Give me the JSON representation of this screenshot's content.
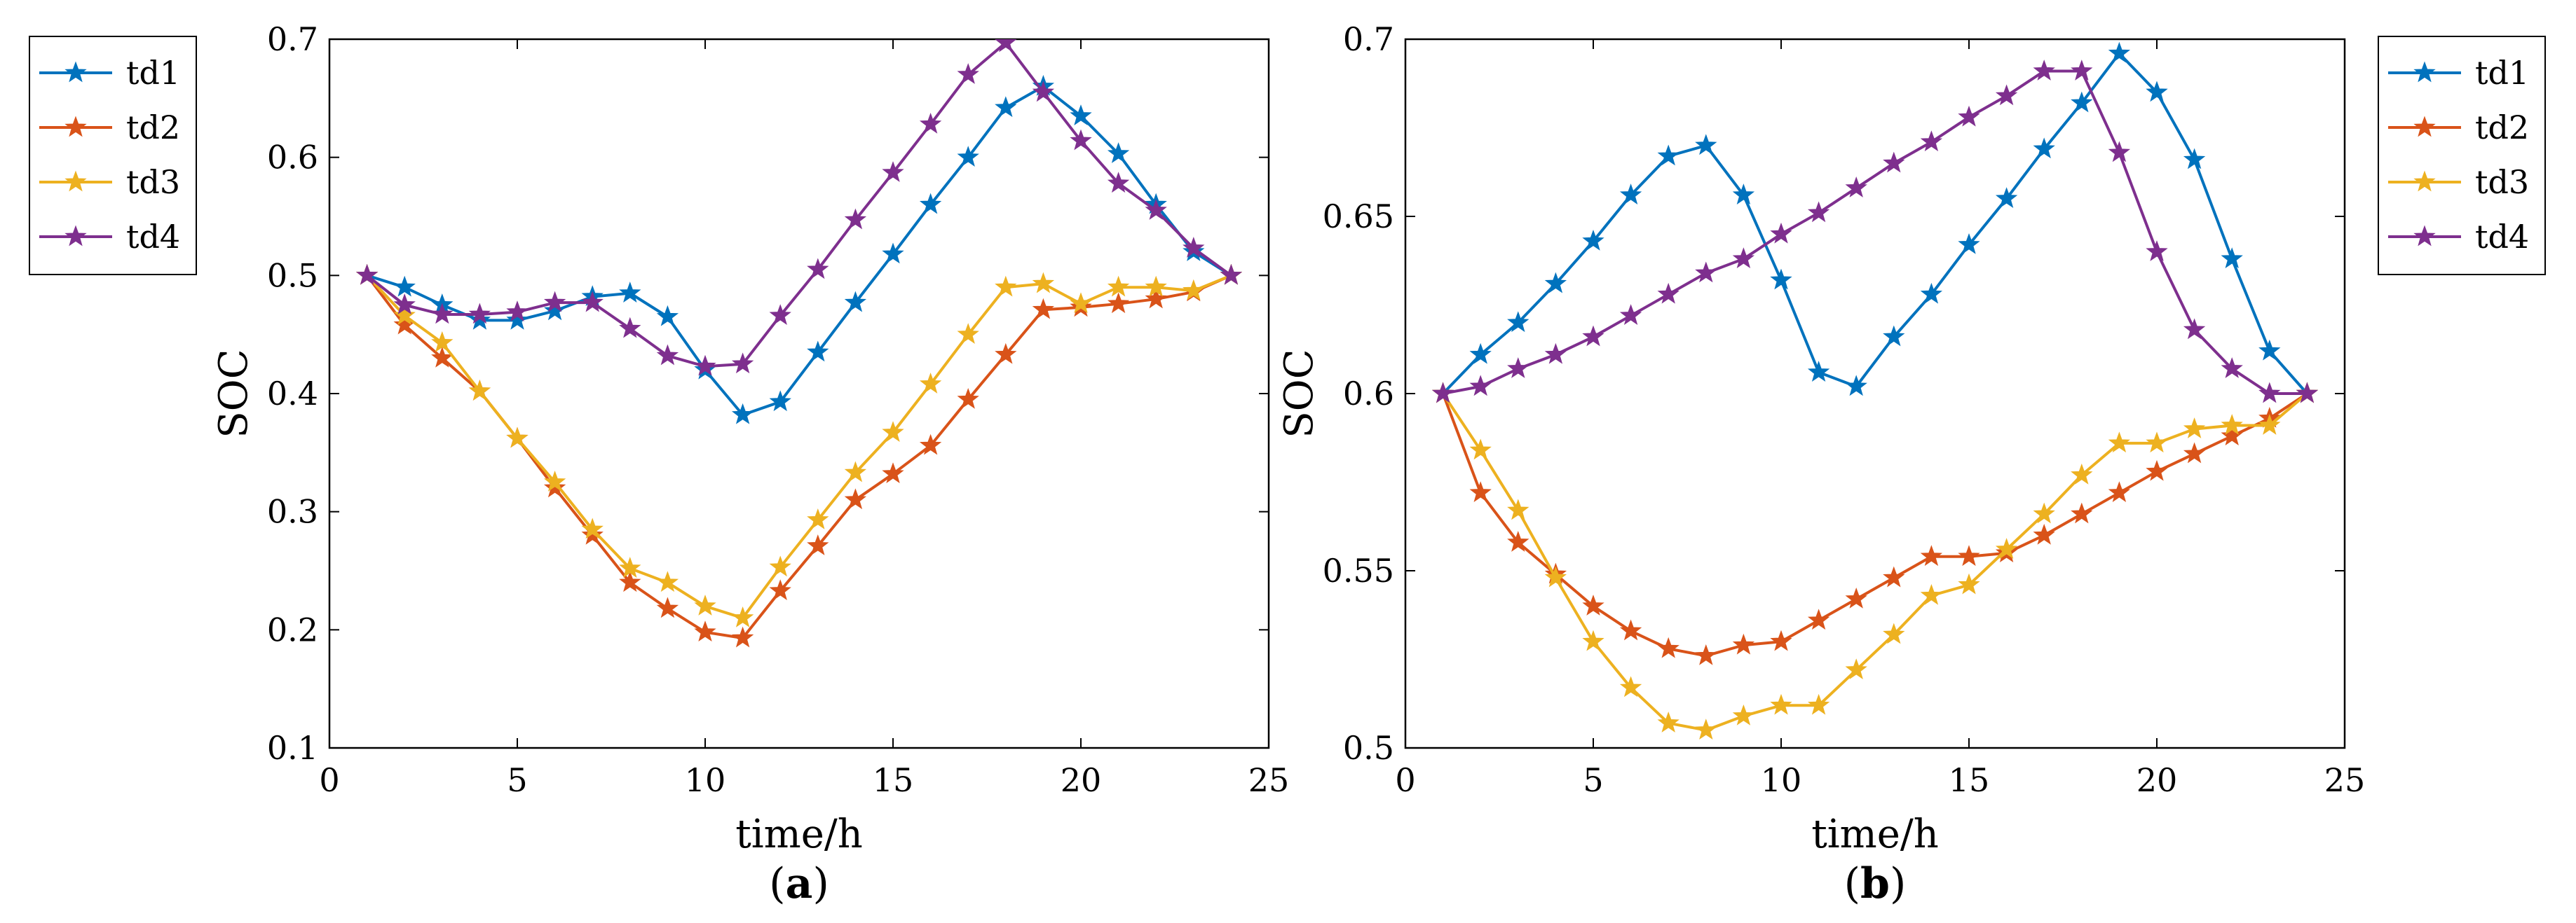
{
  "chart_data": [
    {
      "type": "line",
      "panel_label": "a",
      "xlabel": "time/h",
      "ylabel": "SOC",
      "xlim": [
        0,
        25
      ],
      "ylim": [
        0.1,
        0.7
      ],
      "xticks": [
        0,
        5,
        10,
        15,
        20,
        25
      ],
      "yticks": [
        0.1,
        0.2,
        0.3,
        0.4,
        0.5,
        0.6,
        0.7
      ],
      "xtick_labels": [
        "0",
        "5",
        "10",
        "15",
        "20",
        "25"
      ],
      "ytick_labels": [
        "0.1",
        "0.2",
        "0.3",
        "0.4",
        "0.5",
        "0.6",
        "0.7"
      ],
      "legend_position": "outside-left",
      "x": [
        1,
        2,
        3,
        4,
        5,
        6,
        7,
        8,
        9,
        10,
        11,
        12,
        13,
        14,
        15,
        16,
        17,
        18,
        19,
        20,
        21,
        22,
        23,
        24
      ],
      "series": [
        {
          "name": "td1",
          "color": "#0072BD",
          "values": [
            0.5,
            0.49,
            0.475,
            0.462,
            0.462,
            0.47,
            0.482,
            0.485,
            0.465,
            0.42,
            0.382,
            0.393,
            0.435,
            0.477,
            0.518,
            0.56,
            0.6,
            0.642,
            0.66,
            0.635,
            0.603,
            0.56,
            0.52,
            0.5
          ]
        },
        {
          "name": "td2",
          "color": "#D95319",
          "values": [
            0.5,
            0.458,
            0.43,
            0.402,
            0.362,
            0.32,
            0.28,
            0.24,
            0.218,
            0.198,
            0.193,
            0.233,
            0.271,
            0.31,
            0.332,
            0.356,
            0.395,
            0.433,
            0.471,
            0.473,
            0.476,
            0.48,
            0.486,
            0.5
          ]
        },
        {
          "name": "td3",
          "color": "#EDB120",
          "values": [
            0.5,
            0.466,
            0.443,
            0.402,
            0.362,
            0.325,
            0.285,
            0.252,
            0.24,
            0.22,
            0.21,
            0.253,
            0.293,
            0.333,
            0.367,
            0.408,
            0.45,
            0.49,
            0.493,
            0.476,
            0.49,
            0.49,
            0.487,
            0.5
          ]
        },
        {
          "name": "td4",
          "color": "#7E2F8E",
          "values": [
            0.5,
            0.475,
            0.467,
            0.467,
            0.469,
            0.477,
            0.477,
            0.455,
            0.432,
            0.423,
            0.425,
            0.466,
            0.505,
            0.547,
            0.587,
            0.628,
            0.67,
            0.697,
            0.655,
            0.614,
            0.578,
            0.555,
            0.523,
            0.5
          ]
        }
      ]
    },
    {
      "type": "line",
      "panel_label": "b",
      "xlabel": "time/h",
      "ylabel": "SOC",
      "xlim": [
        0,
        25
      ],
      "ylim": [
        0.5,
        0.7
      ],
      "xticks": [
        0,
        5,
        10,
        15,
        20,
        25
      ],
      "yticks": [
        0.5,
        0.55,
        0.6,
        0.65,
        0.7
      ],
      "xtick_labels": [
        "0",
        "5",
        "10",
        "15",
        "20",
        "25"
      ],
      "ytick_labels": [
        "0.5",
        "0.55",
        "0.6",
        "0.65",
        "0.7"
      ],
      "legend_position": "outside-right",
      "x": [
        1,
        2,
        3,
        4,
        5,
        6,
        7,
        8,
        9,
        10,
        11,
        12,
        13,
        14,
        15,
        16,
        17,
        18,
        19,
        20,
        21,
        22,
        23,
        24
      ],
      "series": [
        {
          "name": "td1",
          "color": "#0072BD",
          "values": [
            0.6,
            0.611,
            0.62,
            0.631,
            0.643,
            0.656,
            0.667,
            0.67,
            0.656,
            0.632,
            0.606,
            0.602,
            0.616,
            0.628,
            0.642,
            0.655,
            0.669,
            0.682,
            0.696,
            0.685,
            0.666,
            0.638,
            0.612,
            0.6
          ]
        },
        {
          "name": "td2",
          "color": "#D95319",
          "values": [
            0.6,
            0.572,
            0.558,
            0.549,
            0.54,
            0.533,
            0.528,
            0.526,
            0.529,
            0.53,
            0.536,
            0.542,
            0.548,
            0.554,
            0.554,
            0.555,
            0.56,
            0.566,
            0.572,
            0.578,
            0.583,
            0.588,
            0.593,
            0.6
          ]
        },
        {
          "name": "td3",
          "color": "#EDB120",
          "values": [
            0.6,
            0.584,
            0.567,
            0.548,
            0.53,
            0.517,
            0.507,
            0.505,
            0.509,
            0.512,
            0.512,
            0.522,
            0.532,
            0.543,
            0.546,
            0.556,
            0.566,
            0.577,
            0.586,
            0.586,
            0.59,
            0.591,
            0.591,
            0.6
          ]
        },
        {
          "name": "td4",
          "color": "#7E2F8E",
          "values": [
            0.6,
            0.602,
            0.607,
            0.611,
            0.616,
            0.622,
            0.628,
            0.634,
            0.638,
            0.645,
            0.651,
            0.658,
            0.665,
            0.671,
            0.678,
            0.684,
            0.691,
            0.691,
            0.668,
            0.64,
            0.618,
            0.607,
            0.6,
            0.6
          ]
        }
      ]
    }
  ]
}
